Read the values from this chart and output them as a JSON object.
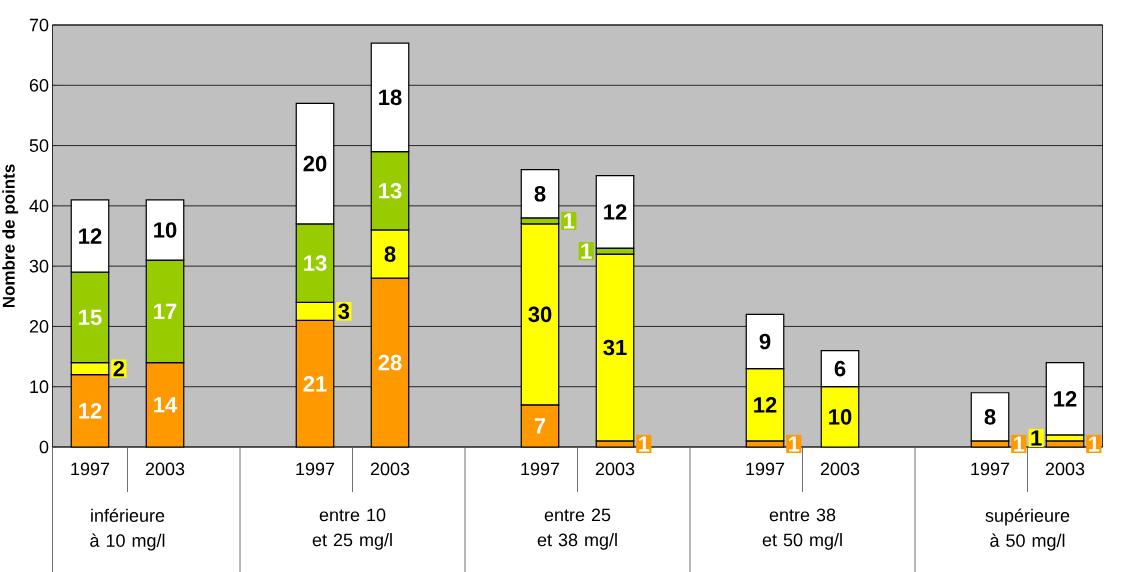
{
  "chart_data": {
    "type": "bar",
    "stacked": true,
    "data_labels": true,
    "grid": "y",
    "ylabel": "Nombre de points",
    "categories": [
      "1997",
      "2003",
      null,
      "1997",
      "2003",
      null,
      "1997",
      "2003",
      null,
      "1997",
      "2003",
      null,
      "1997",
      "2003"
    ],
    "series": [
      {
        "color": "#ff9900",
        "values": [
          12,
          14,
          null,
          21,
          28,
          null,
          7,
          1,
          null,
          1,
          null,
          null,
          1,
          1
        ]
      },
      {
        "color": "#ffff00",
        "values": [
          2,
          null,
          null,
          3,
          8,
          null,
          30,
          31,
          null,
          12,
          10,
          null,
          null,
          1
        ]
      },
      {
        "color": "#99cc00",
        "values": [
          15,
          17,
          null,
          13,
          13,
          null,
          1,
          1,
          null,
          null,
          null,
          null,
          null,
          null
        ]
      },
      {
        "color": "#ffffff",
        "values": [
          12,
          10,
          null,
          20,
          18,
          null,
          8,
          12,
          null,
          9,
          6,
          null,
          8,
          12
        ]
      }
    ],
    "ylim": [
      0,
      70
    ],
    "yticks": [
      0,
      10,
      20,
      30,
      40,
      50,
      60,
      70
    ],
    "annotations": [
      "inférieure à 10 mg/l",
      "entre 10 et 25 mg/l",
      "entre 25 et 38 mg/l",
      "entre 38 et 50 mg/l",
      "supérieure à 50 mg/l"
    ]
  }
}
